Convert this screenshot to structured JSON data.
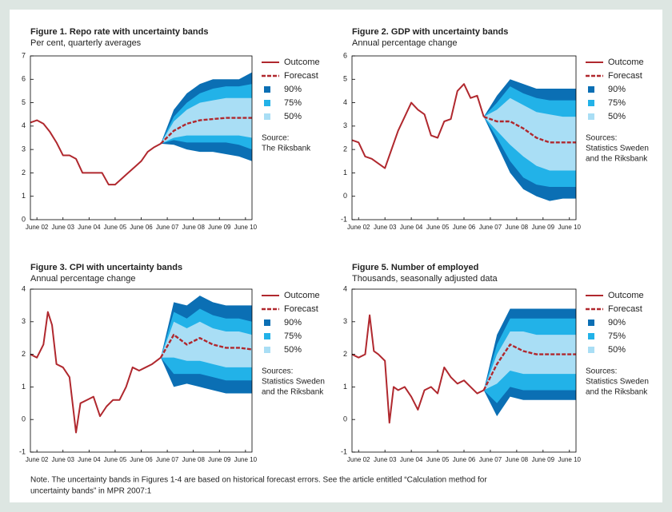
{
  "chart_data": [
    {
      "type": "line",
      "title": "Figure 1. Repo rate with uncertainty bands",
      "subtitle": "Per cent, quarterly averages",
      "xlim": [
        2002.25,
        2010.75
      ],
      "ylim": [
        0,
        7
      ],
      "yticks": [
        0,
        1,
        2,
        3,
        4,
        5,
        6,
        7
      ],
      "xticks": [
        {
          "value": 2002.5,
          "label": "June 02"
        },
        {
          "value": 2003.5,
          "label": "June 03"
        },
        {
          "value": 2004.5,
          "label": "June 04"
        },
        {
          "value": 2005.5,
          "label": "June 05"
        },
        {
          "value": 2006.5,
          "label": "June 06"
        },
        {
          "value": 2007.5,
          "label": "June 07"
        },
        {
          "value": 2008.5,
          "label": "June 08"
        },
        {
          "value": 2009.5,
          "label": "June 09"
        },
        {
          "value": 2010.5,
          "label": "June 10"
        }
      ],
      "series": [
        {
          "name": "Outcome",
          "color": "#b0282e",
          "style": "solid",
          "x": [
            2002.25,
            2002.5,
            2002.75,
            2003,
            2003.25,
            2003.5,
            2003.75,
            2004,
            2004.25,
            2004.5,
            2004.75,
            2005,
            2005.25,
            2005.5,
            2005.75,
            2006,
            2006.25,
            2006.5,
            2006.75,
            2007,
            2007.25
          ],
          "values": [
            4.15,
            4.25,
            4.1,
            3.75,
            3.3,
            2.75,
            2.75,
            2.6,
            2.0,
            2.0,
            2.0,
            2.0,
            1.5,
            1.5,
            1.75,
            2.0,
            2.25,
            2.5,
            2.9,
            3.1,
            3.25
          ]
        },
        {
          "name": "Forecast",
          "color": "#b0282e",
          "style": "dashed",
          "x": [
            2007.25,
            2007.75,
            2008.25,
            2008.75,
            2009.25,
            2009.75,
            2010.25,
            2010.75
          ],
          "values": [
            3.25,
            3.8,
            4.1,
            4.25,
            4.3,
            4.35,
            4.35,
            4.35
          ]
        }
      ],
      "bands": [
        {
          "name": "90%",
          "color": "#0b6fb4",
          "upper": [
            3.25,
            4.7,
            5.4,
            5.8,
            6.0,
            6.0,
            6.0,
            6.3
          ],
          "lower": [
            3.25,
            3.2,
            3.0,
            2.9,
            2.9,
            2.8,
            2.7,
            2.5
          ]
        },
        {
          "name": "75%",
          "color": "#22b2e8",
          "upper": [
            3.25,
            4.4,
            5.0,
            5.4,
            5.6,
            5.7,
            5.7,
            5.8
          ],
          "lower": [
            3.25,
            3.4,
            3.3,
            3.3,
            3.3,
            3.3,
            3.2,
            3.0
          ]
        },
        {
          "name": "50%",
          "color": "#a9def5",
          "upper": [
            3.25,
            4.2,
            4.7,
            5.0,
            5.1,
            5.2,
            5.2,
            5.2
          ],
          "lower": [
            3.25,
            3.5,
            3.6,
            3.6,
            3.6,
            3.6,
            3.6,
            3.5
          ]
        }
      ],
      "source": [
        "Source:",
        "The Riksbank"
      ]
    },
    {
      "type": "line",
      "title": "Figure 2. GDP with uncertainty bands",
      "subtitle": "Annual percentage change",
      "xlim": [
        2002.25,
        2010.75
      ],
      "ylim": [
        -1,
        6
      ],
      "yticks": [
        -1,
        0,
        1,
        2,
        3,
        4,
        5,
        6
      ],
      "xticks": [
        {
          "value": 2002.5,
          "label": "June 02"
        },
        {
          "value": 2003.5,
          "label": "June 03"
        },
        {
          "value": 2004.5,
          "label": "June 04"
        },
        {
          "value": 2005.5,
          "label": "June 05"
        },
        {
          "value": 2006.5,
          "label": "June 06"
        },
        {
          "value": 2007.5,
          "label": "June 07"
        },
        {
          "value": 2008.5,
          "label": "June 08"
        },
        {
          "value": 2009.5,
          "label": "June 09"
        },
        {
          "value": 2010.5,
          "label": "June 10"
        }
      ],
      "series": [
        {
          "name": "Outcome",
          "color": "#b0282e",
          "style": "solid",
          "x": [
            2002.25,
            2002.5,
            2002.75,
            2003,
            2003.25,
            2003.5,
            2003.75,
            2004,
            2004.25,
            2004.5,
            2004.75,
            2005,
            2005.25,
            2005.5,
            2005.75,
            2006,
            2006.25,
            2006.5,
            2006.75,
            2007,
            2007.25
          ],
          "values": [
            2.4,
            2.3,
            1.7,
            1.6,
            1.4,
            1.2,
            2.0,
            2.8,
            3.4,
            4.0,
            3.7,
            3.5,
            2.6,
            2.5,
            3.2,
            3.3,
            4.5,
            4.8,
            4.2,
            4.3,
            3.4
          ]
        },
        {
          "name": "Forecast",
          "color": "#b0282e",
          "style": "dashed",
          "x": [
            2007.25,
            2007.75,
            2008.25,
            2008.75,
            2009.25,
            2009.75,
            2010.25,
            2010.75
          ],
          "values": [
            3.4,
            3.2,
            3.2,
            2.9,
            2.5,
            2.3,
            2.3,
            2.3
          ]
        }
      ],
      "bands": [
        {
          "name": "90%",
          "color": "#0b6fb4",
          "upper": [
            3.4,
            4.3,
            5.0,
            4.8,
            4.6,
            4.6,
            4.6,
            4.6
          ],
          "lower": [
            3.4,
            2.2,
            1.0,
            0.3,
            0.0,
            -0.2,
            -0.1,
            -0.1
          ]
        },
        {
          "name": "75%",
          "color": "#22b2e8",
          "upper": [
            3.4,
            4.0,
            4.7,
            4.4,
            4.2,
            4.1,
            4.1,
            4.1
          ],
          "lower": [
            3.4,
            2.5,
            1.5,
            0.8,
            0.5,
            0.4,
            0.4,
            0.4
          ]
        },
        {
          "name": "50%",
          "color": "#a9def5",
          "upper": [
            3.4,
            3.7,
            4.2,
            3.9,
            3.6,
            3.5,
            3.4,
            3.4
          ],
          "lower": [
            3.4,
            2.8,
            2.2,
            1.7,
            1.3,
            1.1,
            1.1,
            1.1
          ]
        }
      ],
      "source": [
        "Sources:",
        "Statistics Sweden",
        "and the Riksbank"
      ]
    },
    {
      "type": "line",
      "title": "Figure 3. CPI with uncertainty bands",
      "subtitle": "Annual percentage change",
      "xlim": [
        2002.25,
        2010.75
      ],
      "ylim": [
        -1,
        4
      ],
      "yticks": [
        -1,
        0,
        1,
        2,
        3,
        4
      ],
      "xticks": [
        {
          "value": 2002.5,
          "label": "June 02"
        },
        {
          "value": 2003.5,
          "label": "June 03"
        },
        {
          "value": 2004.5,
          "label": "June 04"
        },
        {
          "value": 2005.5,
          "label": "June 05"
        },
        {
          "value": 2006.5,
          "label": "June 06"
        },
        {
          "value": 2007.5,
          "label": "June 07"
        },
        {
          "value": 2008.5,
          "label": "June 08"
        },
        {
          "value": 2009.5,
          "label": "June 09"
        },
        {
          "value": 2010.5,
          "label": "June 10"
        }
      ],
      "series": [
        {
          "name": "Outcome",
          "color": "#b0282e",
          "style": "solid",
          "x": [
            2002.25,
            2002.5,
            2002.75,
            2002.92,
            2003.08,
            2003.25,
            2003.5,
            2003.75,
            2004,
            2004.17,
            2004.42,
            2004.67,
            2004.92,
            2005.17,
            2005.42,
            2005.67,
            2005.92,
            2006.17,
            2006.42,
            2006.67,
            2006.92,
            2007.25
          ],
          "values": [
            2.0,
            1.9,
            2.3,
            3.3,
            2.9,
            1.7,
            1.6,
            1.3,
            -0.4,
            0.5,
            0.6,
            0.7,
            0.1,
            0.4,
            0.6,
            0.6,
            1.0,
            1.6,
            1.5,
            1.6,
            1.7,
            1.9
          ]
        },
        {
          "name": "Forecast",
          "color": "#b0282e",
          "style": "dashed",
          "x": [
            2007.25,
            2007.75,
            2008.25,
            2008.75,
            2009.25,
            2009.75,
            2010.25,
            2010.75
          ],
          "values": [
            1.9,
            2.6,
            2.3,
            2.5,
            2.3,
            2.2,
            2.2,
            2.15
          ]
        }
      ],
      "bands": [
        {
          "name": "90%",
          "color": "#0b6fb4",
          "upper": [
            1.9,
            3.6,
            3.5,
            3.8,
            3.6,
            3.5,
            3.5,
            3.5
          ],
          "lower": [
            1.9,
            1.0,
            1.1,
            1.0,
            0.9,
            0.8,
            0.8,
            0.8
          ]
        },
        {
          "name": "75%",
          "color": "#22b2e8",
          "upper": [
            1.9,
            3.3,
            3.1,
            3.4,
            3.2,
            3.1,
            3.1,
            3.0
          ],
          "lower": [
            1.9,
            1.4,
            1.4,
            1.4,
            1.3,
            1.2,
            1.2,
            1.2
          ]
        },
        {
          "name": "50%",
          "color": "#a9def5",
          "upper": [
            1.9,
            3.0,
            2.8,
            3.0,
            2.8,
            2.7,
            2.7,
            2.6
          ],
          "lower": [
            1.9,
            1.9,
            1.8,
            1.8,
            1.7,
            1.6,
            1.6,
            1.6
          ]
        }
      ],
      "source": [
        "Sources:",
        "Statistics Sweden",
        "and the Riksbank"
      ]
    },
    {
      "type": "line",
      "title": "Figure 5. Number of employed",
      "subtitle": "Thousands, seasonally adjusted data",
      "xlim": [
        2002.25,
        2010.75
      ],
      "ylim": [
        -1,
        4
      ],
      "yticks": [
        -1,
        0,
        1,
        2,
        3,
        4
      ],
      "xticks": [
        {
          "value": 2002.5,
          "label": "June 02"
        },
        {
          "value": 2003.5,
          "label": "June 03"
        },
        {
          "value": 2004.5,
          "label": "June 04"
        },
        {
          "value": 2005.5,
          "label": "June 05"
        },
        {
          "value": 2006.5,
          "label": "June 06"
        },
        {
          "value": 2007.5,
          "label": "June 07"
        },
        {
          "value": 2008.5,
          "label": "June 08"
        },
        {
          "value": 2009.5,
          "label": "June 09"
        },
        {
          "value": 2010.5,
          "label": "June 10"
        }
      ],
      "series": [
        {
          "name": "Outcome",
          "color": "#b0282e",
          "style": "solid",
          "x": [
            2002.25,
            2002.5,
            2002.75,
            2002.92,
            2003.08,
            2003.25,
            2003.5,
            2003.67,
            2003.83,
            2004,
            2004.25,
            2004.5,
            2004.75,
            2005,
            2005.25,
            2005.5,
            2005.75,
            2006,
            2006.25,
            2006.5,
            2006.75,
            2007,
            2007.25
          ],
          "values": [
            2.0,
            1.9,
            2.0,
            3.2,
            2.1,
            2.0,
            1.8,
            -0.1,
            1.0,
            0.9,
            1.0,
            0.7,
            0.3,
            0.9,
            1.0,
            0.8,
            1.6,
            1.3,
            1.1,
            1.2,
            1.0,
            0.8,
            0.9
          ]
        },
        {
          "name": "Forecast",
          "color": "#b0282e",
          "style": "dashed",
          "x": [
            2007.25,
            2007.75,
            2008.25,
            2008.75,
            2009.25,
            2009.75,
            2010.25,
            2010.75
          ],
          "values": [
            0.9,
            1.7,
            2.3,
            2.1,
            2.0,
            2.0,
            2.0,
            2.0
          ]
        }
      ],
      "bands": [
        {
          "name": "90%",
          "color": "#0b6fb4",
          "upper": [
            0.9,
            2.6,
            3.4,
            3.4,
            3.4,
            3.4,
            3.4,
            3.4
          ],
          "lower": [
            0.9,
            0.1,
            0.7,
            0.6,
            0.6,
            0.6,
            0.6,
            0.6
          ]
        },
        {
          "name": "75%",
          "color": "#22b2e8",
          "upper": [
            0.9,
            2.3,
            3.1,
            3.1,
            3.1,
            3.1,
            3.1,
            3.1
          ],
          "lower": [
            0.9,
            0.5,
            1.0,
            0.9,
            0.9,
            0.9,
            0.9,
            0.9
          ]
        },
        {
          "name": "50%",
          "color": "#a9def5",
          "upper": [
            0.9,
            2.0,
            2.7,
            2.7,
            2.6,
            2.6,
            2.6,
            2.6
          ],
          "lower": [
            0.9,
            1.1,
            1.5,
            1.4,
            1.4,
            1.4,
            1.4,
            1.4
          ]
        }
      ],
      "source": [
        "Sources:",
        "Statistics Sweden",
        "and the Riksbank"
      ]
    }
  ],
  "note": [
    "Note. The uncertainty bands in Figures 1-4 are based on historical forecast errors. See the article entitled “Calculation method for",
    "uncertainty bands” in MPR 2007:1"
  ]
}
